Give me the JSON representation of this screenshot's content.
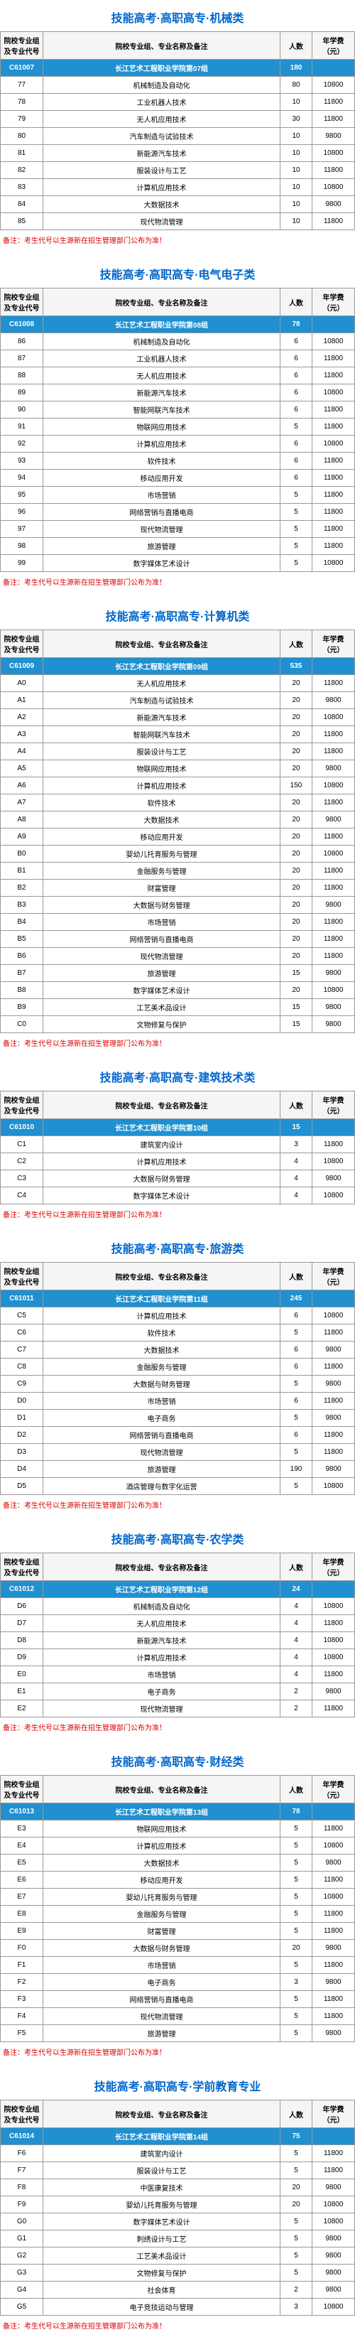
{
  "header_cols": [
    "院校专业组\n及专业代号",
    "院校专业组、专业名称及备注",
    "人数",
    "年学费（元）"
  ],
  "note_text": "备注：考生代号以生源新在招生管理部门公布为准！",
  "sections": [
    {
      "title": "技能高考·高职高专·机械类",
      "group": {
        "code": "C61007",
        "name": "长江艺术工程职业学院第07组",
        "count": "180"
      },
      "rows": [
        {
          "code": "77",
          "name": "机械制造及自动化",
          "count": "80",
          "fee": "10800"
        },
        {
          "code": "78",
          "name": "工业机器人技术",
          "count": "10",
          "fee": "11800"
        },
        {
          "code": "79",
          "name": "无人机应用技术",
          "count": "30",
          "fee": "11800"
        },
        {
          "code": "80",
          "name": "汽车制造与试验技术",
          "count": "10",
          "fee": "9800"
        },
        {
          "code": "81",
          "name": "新能源汽车技术",
          "count": "10",
          "fee": "10800"
        },
        {
          "code": "82",
          "name": "服装设计与工艺",
          "count": "10",
          "fee": "11800"
        },
        {
          "code": "83",
          "name": "计算机应用技术",
          "count": "10",
          "fee": "10800"
        },
        {
          "code": "84",
          "name": "大数据技术",
          "count": "10",
          "fee": "9800"
        },
        {
          "code": "85",
          "name": "现代物流管理",
          "count": "10",
          "fee": "11800"
        }
      ]
    },
    {
      "title": "技能高考·高职高专·电气电子类",
      "group": {
        "code": "C61008",
        "name": "长江艺术工程职业学院第08组",
        "count": "78"
      },
      "rows": [
        {
          "code": "86",
          "name": "机械制造及自动化",
          "count": "6",
          "fee": "10800"
        },
        {
          "code": "87",
          "name": "工业机器人技术",
          "count": "6",
          "fee": "11800"
        },
        {
          "code": "88",
          "name": "无人机应用技术",
          "count": "6",
          "fee": "11800"
        },
        {
          "code": "89",
          "name": "新能源汽车技术",
          "count": "6",
          "fee": "10800"
        },
        {
          "code": "90",
          "name": "智能网联汽车技术",
          "count": "6",
          "fee": "11800"
        },
        {
          "code": "91",
          "name": "物联网应用技术",
          "count": "5",
          "fee": "11800"
        },
        {
          "code": "92",
          "name": "计算机应用技术",
          "count": "6",
          "fee": "10800"
        },
        {
          "code": "93",
          "name": "软件技术",
          "count": "6",
          "fee": "11800"
        },
        {
          "code": "94",
          "name": "移动应用开发",
          "count": "6",
          "fee": "11800"
        },
        {
          "code": "95",
          "name": "市场营销",
          "count": "5",
          "fee": "11800"
        },
        {
          "code": "96",
          "name": "网络营销与直播电商",
          "count": "5",
          "fee": "11800"
        },
        {
          "code": "97",
          "name": "现代物流管理",
          "count": "5",
          "fee": "11800"
        },
        {
          "code": "98",
          "name": "旅游管理",
          "count": "5",
          "fee": "11800"
        },
        {
          "code": "99",
          "name": "数字媒体艺术设计",
          "count": "5",
          "fee": "10800"
        }
      ]
    },
    {
      "title": "技能高考·高职高专·计算机类",
      "group": {
        "code": "C61009",
        "name": "长江艺术工程职业学院第09组",
        "count": "535"
      },
      "rows": [
        {
          "code": "A0",
          "name": "无人机应用技术",
          "count": "20",
          "fee": "11800"
        },
        {
          "code": "A1",
          "name": "汽车制造与试验技术",
          "count": "20",
          "fee": "9800"
        },
        {
          "code": "A2",
          "name": "新能源汽车技术",
          "count": "20",
          "fee": "10800"
        },
        {
          "code": "A3",
          "name": "智能网联汽车技术",
          "count": "20",
          "fee": "11800"
        },
        {
          "code": "A4",
          "name": "服装设计与工艺",
          "count": "20",
          "fee": "11800"
        },
        {
          "code": "A5",
          "name": "物联网应用技术",
          "count": "20",
          "fee": "9800"
        },
        {
          "code": "A6",
          "name": "计算机应用技术",
          "count": "150",
          "fee": "10800"
        },
        {
          "code": "A7",
          "name": "软件技术",
          "count": "20",
          "fee": "11800"
        },
        {
          "code": "A8",
          "name": "大数据技术",
          "count": "20",
          "fee": "9800"
        },
        {
          "code": "A9",
          "name": "移动应用开发",
          "count": "20",
          "fee": "11800"
        },
        {
          "code": "B0",
          "name": "婴幼儿托育服务与管理",
          "count": "20",
          "fee": "10800"
        },
        {
          "code": "B1",
          "name": "金融服务与管理",
          "count": "20",
          "fee": "11800"
        },
        {
          "code": "B2",
          "name": "财富管理",
          "count": "20",
          "fee": "11800"
        },
        {
          "code": "B3",
          "name": "大数据与财务管理",
          "count": "20",
          "fee": "9800"
        },
        {
          "code": "B4",
          "name": "市场营销",
          "count": "20",
          "fee": "11800"
        },
        {
          "code": "B5",
          "name": "网络营销与直播电商",
          "count": "20",
          "fee": "11800"
        },
        {
          "code": "B6",
          "name": "现代物流管理",
          "count": "20",
          "fee": "11800"
        },
        {
          "code": "B7",
          "name": "旅游管理",
          "count": "15",
          "fee": "9800"
        },
        {
          "code": "B8",
          "name": "数字媒体艺术设计",
          "count": "20",
          "fee": "10800"
        },
        {
          "code": "B9",
          "name": "工艺美术品设计",
          "count": "15",
          "fee": "9800"
        },
        {
          "code": "C0",
          "name": "文物修复与保护",
          "count": "15",
          "fee": "9800"
        }
      ]
    },
    {
      "title": "技能高考·高职高专·建筑技术类",
      "group": {
        "code": "C61010",
        "name": "长江艺术工程职业学院第10组",
        "count": "15"
      },
      "rows": [
        {
          "code": "C1",
          "name": "建筑室内设计",
          "count": "3",
          "fee": "11800"
        },
        {
          "code": "C2",
          "name": "计算机应用技术",
          "count": "4",
          "fee": "10800"
        },
        {
          "code": "C3",
          "name": "大数据与财务管理",
          "count": "4",
          "fee": "9800"
        },
        {
          "code": "C4",
          "name": "数字媒体艺术设计",
          "count": "4",
          "fee": "10800"
        }
      ]
    },
    {
      "title": "技能高考·高职高专·旅游类",
      "group": {
        "code": "C61011",
        "name": "长江艺术工程职业学院第11组",
        "count": "245"
      },
      "rows": [
        {
          "code": "C5",
          "name": "计算机应用技术",
          "count": "6",
          "fee": "10800"
        },
        {
          "code": "C6",
          "name": "软件技术",
          "count": "5",
          "fee": "11800"
        },
        {
          "code": "C7",
          "name": "大数据技术",
          "count": "6",
          "fee": "9800"
        },
        {
          "code": "C8",
          "name": "金融服务与管理",
          "count": "6",
          "fee": "11800"
        },
        {
          "code": "C9",
          "name": "大数据与财务管理",
          "count": "5",
          "fee": "9800"
        },
        {
          "code": "D0",
          "name": "市场营销",
          "count": "6",
          "fee": "11800"
        },
        {
          "code": "D1",
          "name": "电子商务",
          "count": "5",
          "fee": "9800"
        },
        {
          "code": "D2",
          "name": "网络营销与直播电商",
          "count": "6",
          "fee": "11800"
        },
        {
          "code": "D3",
          "name": "现代物流管理",
          "count": "5",
          "fee": "11800"
        },
        {
          "code": "D4",
          "name": "旅游管理",
          "count": "190",
          "fee": "9800"
        },
        {
          "code": "D5",
          "name": "酒店管理与数字化运营",
          "count": "5",
          "fee": "10800"
        }
      ]
    },
    {
      "title": "技能高考·高职高专·农学类",
      "group": {
        "code": "C61012",
        "name": "长江艺术工程职业学院第12组",
        "count": "24"
      },
      "rows": [
        {
          "code": "D6",
          "name": "机械制造及自动化",
          "count": "4",
          "fee": "10800"
        },
        {
          "code": "D7",
          "name": "无人机应用技术",
          "count": "4",
          "fee": "11800"
        },
        {
          "code": "D8",
          "name": "新能源汽车技术",
          "count": "4",
          "fee": "10800"
        },
        {
          "code": "D9",
          "name": "计算机应用技术",
          "count": "4",
          "fee": "10800"
        },
        {
          "code": "E0",
          "name": "市场营销",
          "count": "4",
          "fee": "11800"
        },
        {
          "code": "E1",
          "name": "电子商务",
          "count": "2",
          "fee": "9800"
        },
        {
          "code": "E2",
          "name": "现代物流管理",
          "count": "2",
          "fee": "11800"
        }
      ]
    },
    {
      "title": "技能高考·高职高专·财经类",
      "group": {
        "code": "C61013",
        "name": "长江艺术工程职业学院第13组",
        "count": "78"
      },
      "rows": [
        {
          "code": "E3",
          "name": "物联网应用技术",
          "count": "5",
          "fee": "11800"
        },
        {
          "code": "E4",
          "name": "计算机应用技术",
          "count": "5",
          "fee": "10800"
        },
        {
          "code": "E5",
          "name": "大数据技术",
          "count": "5",
          "fee": "9800"
        },
        {
          "code": "E6",
          "name": "移动应用开发",
          "count": "5",
          "fee": "11800"
        },
        {
          "code": "E7",
          "name": "婴幼儿托育服务与管理",
          "count": "5",
          "fee": "10800"
        },
        {
          "code": "E8",
          "name": "金融服务与管理",
          "count": "5",
          "fee": "11800"
        },
        {
          "code": "E9",
          "name": "财富管理",
          "count": "5",
          "fee": "11800"
        },
        {
          "code": "F0",
          "name": "大数据与财务管理",
          "count": "20",
          "fee": "9800"
        },
        {
          "code": "F1",
          "name": "市场营销",
          "count": "5",
          "fee": "11800"
        },
        {
          "code": "F2",
          "name": "电子商务",
          "count": "3",
          "fee": "9800"
        },
        {
          "code": "F3",
          "name": "网络营销与直播电商",
          "count": "5",
          "fee": "11800"
        },
        {
          "code": "F4",
          "name": "现代物流管理",
          "count": "5",
          "fee": "11800"
        },
        {
          "code": "F5",
          "name": "旅游管理",
          "count": "5",
          "fee": "9800"
        }
      ]
    },
    {
      "title": "技能高考·高职高专·学前教育专业",
      "group": {
        "code": "C61014",
        "name": "长江艺术工程职业学院第14组",
        "count": "75"
      },
      "rows": [
        {
          "code": "F6",
          "name": "建筑室内设计",
          "count": "5",
          "fee": "11800"
        },
        {
          "code": "F7",
          "name": "服装设计与工艺",
          "count": "5",
          "fee": "11800"
        },
        {
          "code": "F8",
          "name": "中医康复技术",
          "count": "20",
          "fee": "9800"
        },
        {
          "code": "F9",
          "name": "婴幼儿托育服务与管理",
          "count": "20",
          "fee": "10800"
        },
        {
          "code": "G0",
          "name": "数字媒体艺术设计",
          "count": "5",
          "fee": "10800"
        },
        {
          "code": "G1",
          "name": "刺绣设计与工艺",
          "count": "5",
          "fee": "9800"
        },
        {
          "code": "G2",
          "name": "工艺美术品设计",
          "count": "5",
          "fee": "9800"
        },
        {
          "code": "G3",
          "name": "文物修复与保护",
          "count": "5",
          "fee": "9800"
        },
        {
          "code": "G4",
          "name": "社会体育",
          "count": "2",
          "fee": "9800"
        },
        {
          "code": "G5",
          "name": "电子竞技运动与管理",
          "count": "3",
          "fee": "10800"
        }
      ]
    }
  ]
}
